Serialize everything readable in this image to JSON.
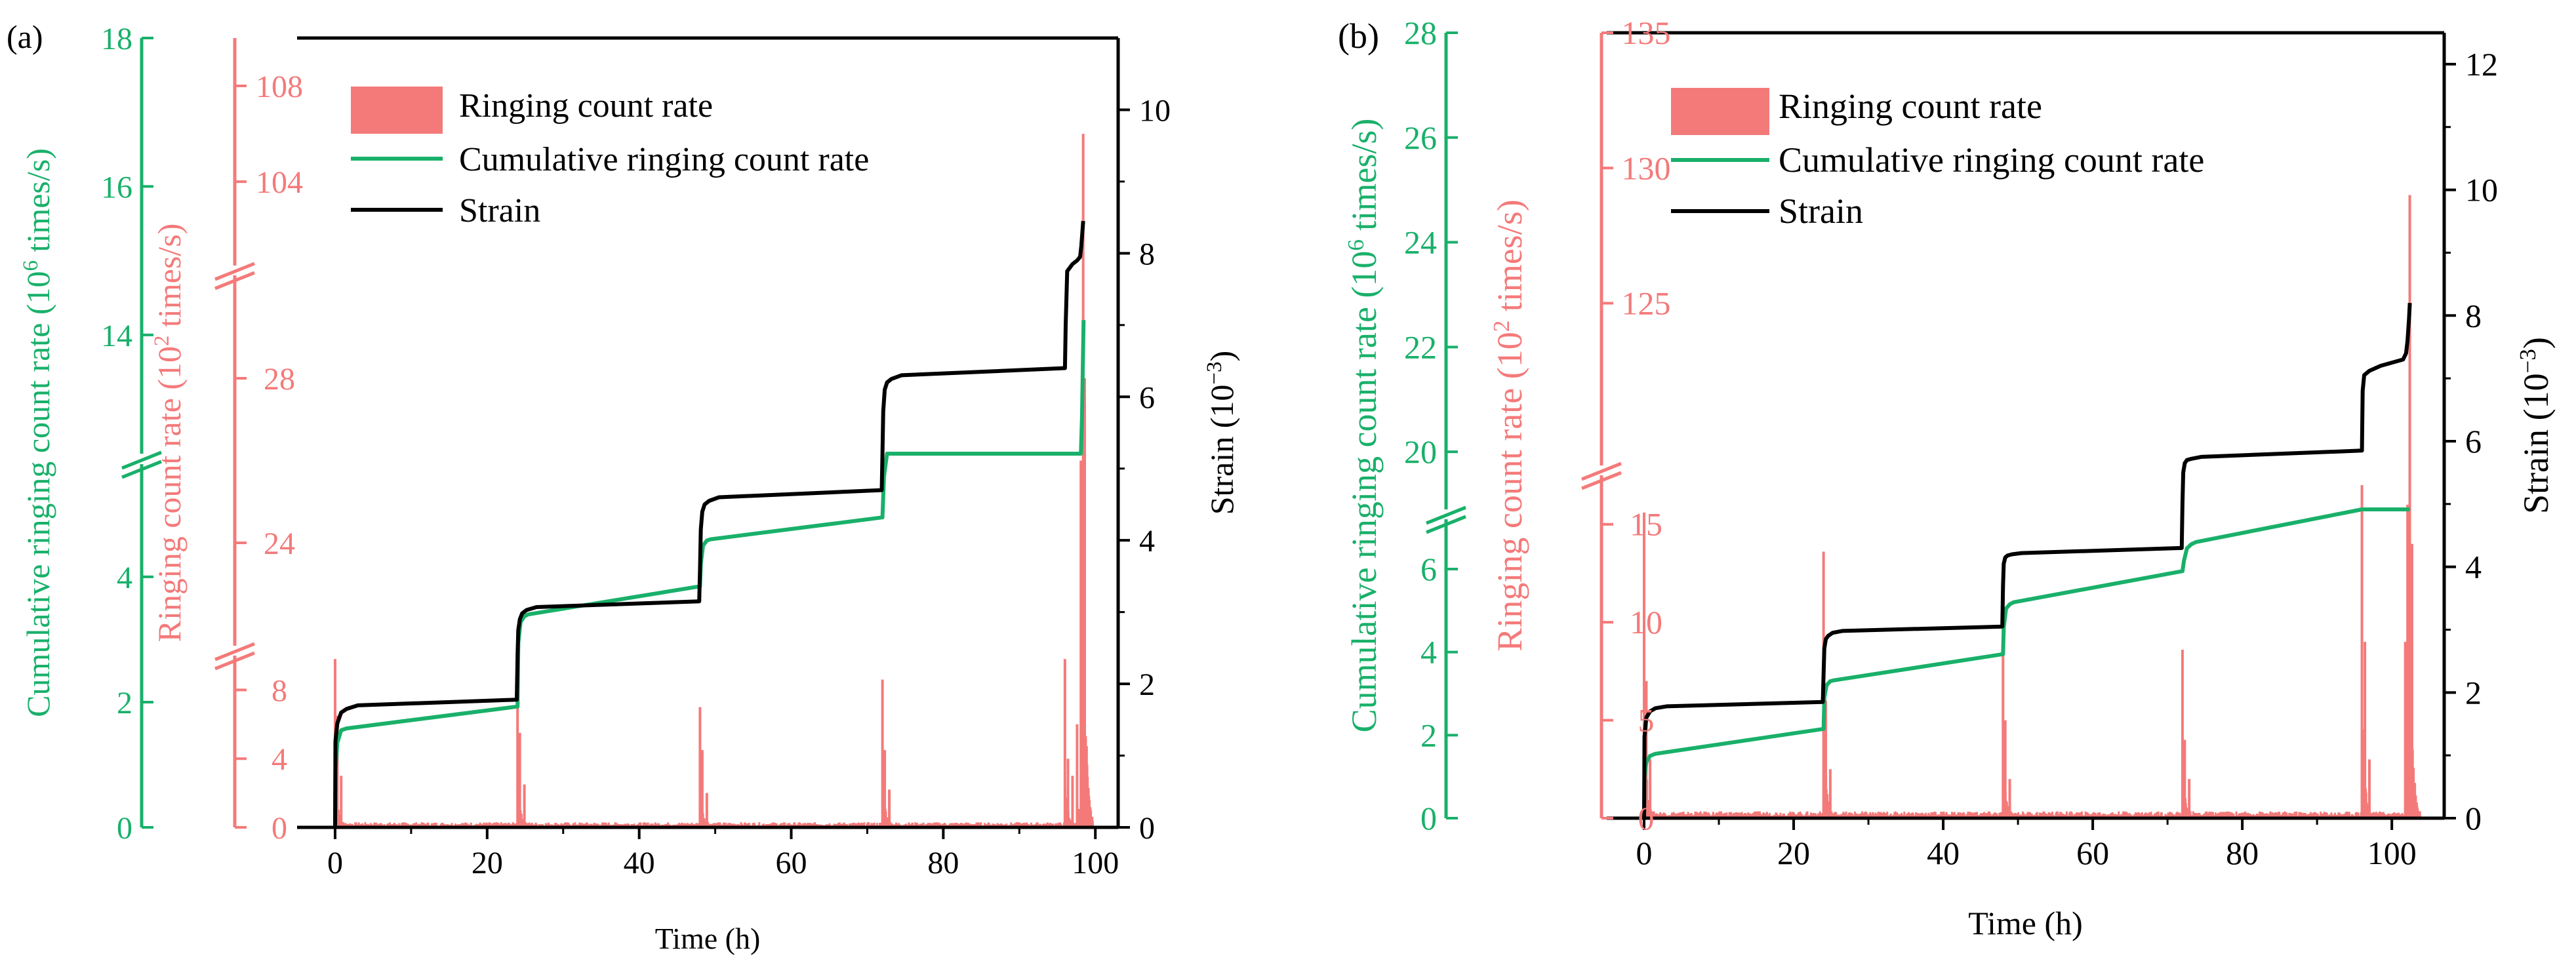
{
  "colors": {
    "ringing": "#f47a7a",
    "cumulative": "#19b06a",
    "strain": "#000000"
  },
  "chart_data": [
    {
      "type": "line",
      "panel_label": "(a)",
      "xlabel": "Time (h)",
      "xlim": [
        -5,
        103
      ],
      "xticks": [
        0,
        20,
        40,
        60,
        80,
        100
      ],
      "axes": {
        "cumulative": {
          "label_main": "Cumulative ringing count rate (10",
          "label_sup": "6",
          "label_end": " times/s)",
          "segments": [
            {
              "range": [
                0,
                5.8
              ],
              "ticks": [
                0,
                2,
                4
              ]
            },
            {
              "range": [
                12.4,
                18
              ],
              "ticks": [
                14,
                16,
                18
              ]
            }
          ]
        },
        "ringing": {
          "label_main": "Ringing count rate (10",
          "label_sup": "2",
          "label_end": " times/s)",
          "segments": [
            {
              "range": [
                0,
                10
              ],
              "ticks": [
                0,
                4,
                8
              ]
            },
            {
              "range": [
                21.5,
                30.5
              ],
              "ticks": [
                24,
                28
              ]
            },
            {
              "range": [
                100.5,
                110
              ],
              "ticks": [
                104,
                108
              ]
            }
          ]
        },
        "strain": {
          "label_main": "Strain (10",
          "label_sup": "−3",
          "label_end": ")",
          "range": [
            0,
            11
          ],
          "ticks": [
            0,
            2,
            4,
            6,
            8,
            10
          ]
        }
      },
      "legend": [
        "Ringing count rate",
        "Cumulative ringing count rate",
        "Strain"
      ],
      "series": [
        {
          "name": "Ringing count rate",
          "axis": "ringing",
          "baseline_peak": 0.3,
          "spikes": [
            {
              "x": 0.0,
              "value": 9.8
            },
            {
              "x": 0.3,
              "value": 6.5
            },
            {
              "x": 0.8,
              "value": 3.0
            },
            {
              "x": 24.0,
              "value": 9.1
            },
            {
              "x": 24.3,
              "value": 5.5
            },
            {
              "x": 24.9,
              "value": 2.5
            },
            {
              "x": 48.0,
              "value": 7.0
            },
            {
              "x": 48.3,
              "value": 4.5
            },
            {
              "x": 48.9,
              "value": 2.0
            },
            {
              "x": 72.0,
              "value": 8.6
            },
            {
              "x": 72.3,
              "value": 4.5
            },
            {
              "x": 72.9,
              "value": 2.2
            },
            {
              "x": 96.0,
              "value": 9.8
            },
            {
              "x": 96.4,
              "value": 4.0
            },
            {
              "x": 97.0,
              "value": 3.0
            },
            {
              "x": 97.6,
              "value": 6.0
            },
            {
              "x": 98.1,
              "value": 26.0
            },
            {
              "x": 98.4,
              "value": 106.0
            },
            {
              "x": 98.6,
              "value": 28.0
            }
          ]
        },
        {
          "name": "Cumulative ringing count rate",
          "axis": "cumulative",
          "x": [
            0,
            0.05,
            0.3,
            0.8,
            1.5,
            24,
            24.1,
            24.4,
            24.9,
            25.4,
            48,
            48.1,
            48.4,
            48.9,
            49.4,
            72,
            72.2,
            72.6,
            73.2,
            73.8,
            96,
            96.2,
            96.6,
            97.3,
            97.6,
            97.9,
            98.1,
            98.25,
            98.45
          ],
          "values": [
            0,
            0.9,
            1.35,
            1.55,
            1.58,
            1.93,
            2.95,
            3.28,
            3.37,
            3.4,
            3.85,
            4.2,
            4.5,
            4.58,
            4.6,
            4.95,
            5.6,
            6.2,
            6.33,
            6.35,
            6.75,
            6.95,
            7.1,
            7.2,
            7.5,
            8.0,
            10.0,
            12.9,
            14.2
          ]
        },
        {
          "name": "Strain",
          "axis": "strain",
          "x": [
            0,
            0.05,
            0.3,
            0.8,
            1.5,
            3,
            23.9,
            24,
            24.1,
            24.3,
            24.6,
            25.2,
            26.5,
            47.9,
            48,
            48.1,
            48.3,
            48.6,
            49.2,
            50.5,
            71.9,
            72,
            72.1,
            72.3,
            72.6,
            73.2,
            74.5,
            96,
            96.1,
            96.3,
            97,
            97.6,
            98.0,
            98.15,
            98.3,
            98.4
          ],
          "values": [
            0,
            1.2,
            1.45,
            1.6,
            1.65,
            1.7,
            1.78,
            2.4,
            2.75,
            2.9,
            2.98,
            3.03,
            3.07,
            3.15,
            3.6,
            4.15,
            4.4,
            4.5,
            4.55,
            4.6,
            4.7,
            5.2,
            5.8,
            6.1,
            6.2,
            6.25,
            6.3,
            6.4,
            7.0,
            7.75,
            7.85,
            7.9,
            7.95,
            8.1,
            8.3,
            8.45
          ]
        }
      ]
    },
    {
      "type": "line",
      "panel_label": "(b)",
      "xlabel": "Time (h)",
      "xlim": [
        -5,
        107
      ],
      "xticks": [
        0,
        20,
        40,
        60,
        80,
        100
      ],
      "axes": {
        "cumulative": {
          "label_main": "Cumulative ringing count rate (10",
          "label_sup": "6",
          "label_end": " times/s)",
          "segments": [
            {
              "range": [
                0,
                7.2
              ],
              "ticks": [
                0,
                2,
                4,
                6
              ]
            },
            {
              "range": [
                18.9,
                28
              ],
              "ticks": [
                20,
                22,
                24,
                26,
                28
              ]
            }
          ]
        },
        "ringing": {
          "label_main": "Ringing count rate (10",
          "label_sup": "2",
          "label_end": " times/s)",
          "segments": [
            {
              "range": [
                0,
                17.5
              ],
              "ticks": [
                0,
                5,
                10,
                15
              ]
            },
            {
              "range": [
                119,
                135
              ],
              "ticks": [
                125,
                130,
                135
              ]
            }
          ]
        },
        "strain": {
          "label_main": "Strain (10",
          "label_sup": "−3",
          "label_end": ")",
          "range": [
            0,
            12.5
          ],
          "ticks": [
            0,
            2,
            4,
            6,
            8,
            10,
            12
          ]
        }
      },
      "legend": [
        "Ringing count rate",
        "Cumulative ringing count rate",
        "Strain"
      ],
      "series": [
        {
          "name": "Ringing count rate",
          "axis": "ringing",
          "baseline_peak": 0.35,
          "spikes": [
            {
              "x": 0.0,
              "value": 15.6
            },
            {
              "x": 0.3,
              "value": 7.0
            },
            {
              "x": 0.8,
              "value": 3.0
            },
            {
              "x": 24.0,
              "value": 13.6
            },
            {
              "x": 24.3,
              "value": 6.0
            },
            {
              "x": 24.9,
              "value": 2.5
            },
            {
              "x": 48.0,
              "value": 10.5
            },
            {
              "x": 48.3,
              "value": 5.0
            },
            {
              "x": 48.9,
              "value": 2.0
            },
            {
              "x": 72.0,
              "value": 8.6
            },
            {
              "x": 72.3,
              "value": 4.0
            },
            {
              "x": 72.9,
              "value": 2.0
            },
            {
              "x": 96.0,
              "value": 17.0
            },
            {
              "x": 96.4,
              "value": 9.0
            },
            {
              "x": 97.0,
              "value": 3.0
            },
            {
              "x": 101.8,
              "value": 9.0
            },
            {
              "x": 102.1,
              "value": 16.0
            },
            {
              "x": 102.4,
              "value": 129.0
            },
            {
              "x": 102.7,
              "value": 14.0
            }
          ]
        },
        {
          "name": "Cumulative ringing count rate",
          "axis": "cumulative",
          "x": [
            0,
            0.05,
            0.3,
            0.8,
            1.5,
            24,
            24.1,
            24.4,
            24.9,
            25.4,
            48,
            48.1,
            48.4,
            48.9,
            49.4,
            72,
            72.2,
            72.6,
            73.2,
            73.8,
            96,
            96.2,
            96.6,
            97.3,
            101.3,
            101.6,
            101.9,
            102.1,
            102.25,
            102.4
          ],
          "values": [
            0,
            1.0,
            1.35,
            1.5,
            1.55,
            2.15,
            2.9,
            3.2,
            3.3,
            3.32,
            3.95,
            4.6,
            5.05,
            5.15,
            5.2,
            5.95,
            6.2,
            6.5,
            6.6,
            6.65,
            7.3,
            8.1,
            8.7,
            8.9,
            9.3,
            10.0,
            10.4,
            13.0,
            16.0,
            18.1
          ]
        },
        {
          "name": "Strain",
          "axis": "strain",
          "x": [
            0,
            0.05,
            0.3,
            0.8,
            1.5,
            3,
            23.9,
            24,
            24.1,
            24.3,
            24.6,
            25.2,
            26.5,
            47.9,
            48,
            48.1,
            48.3,
            48.6,
            49.2,
            50.5,
            71.9,
            72,
            72.1,
            72.3,
            72.6,
            73.2,
            74.5,
            96,
            96.1,
            96.3,
            97,
            98.5,
            101.5,
            101.9,
            102.1,
            102.3,
            102.4
          ],
          "values": [
            0,
            1.3,
            1.6,
            1.7,
            1.75,
            1.78,
            1.85,
            2.3,
            2.7,
            2.85,
            2.9,
            2.95,
            2.98,
            3.05,
            3.7,
            4.05,
            4.15,
            4.18,
            4.2,
            4.22,
            4.3,
            5.0,
            5.5,
            5.65,
            5.7,
            5.72,
            5.75,
            5.85,
            6.8,
            7.05,
            7.12,
            7.2,
            7.3,
            7.4,
            7.6,
            7.95,
            8.2
          ]
        }
      ]
    }
  ]
}
